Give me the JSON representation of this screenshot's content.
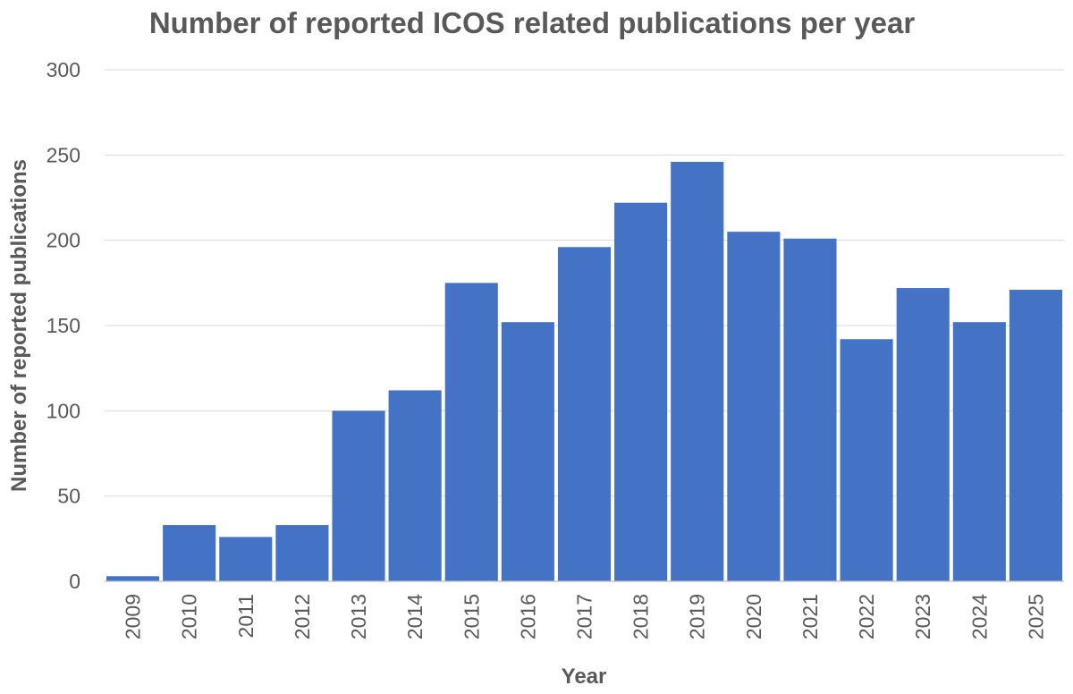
{
  "chart_data": {
    "type": "bar",
    "title": "Number of reported ICOS related publications per year",
    "xlabel": "Year",
    "ylabel": "Number of reported publications",
    "categories": [
      "2009",
      "2010",
      "2011",
      "2012",
      "2013",
      "2014",
      "2015",
      "2016",
      "2017",
      "2018",
      "2019",
      "2020",
      "2021",
      "2022",
      "2023",
      "2024",
      "2025"
    ],
    "values": [
      3,
      33,
      26,
      33,
      100,
      112,
      175,
      152,
      196,
      222,
      246,
      205,
      201,
      142,
      172,
      152,
      171
    ],
    "ylim": [
      0,
      300
    ],
    "yticks": [
      0,
      50,
      100,
      150,
      200,
      250,
      300
    ],
    "grid": true,
    "bar_color": "#4472c4"
  }
}
